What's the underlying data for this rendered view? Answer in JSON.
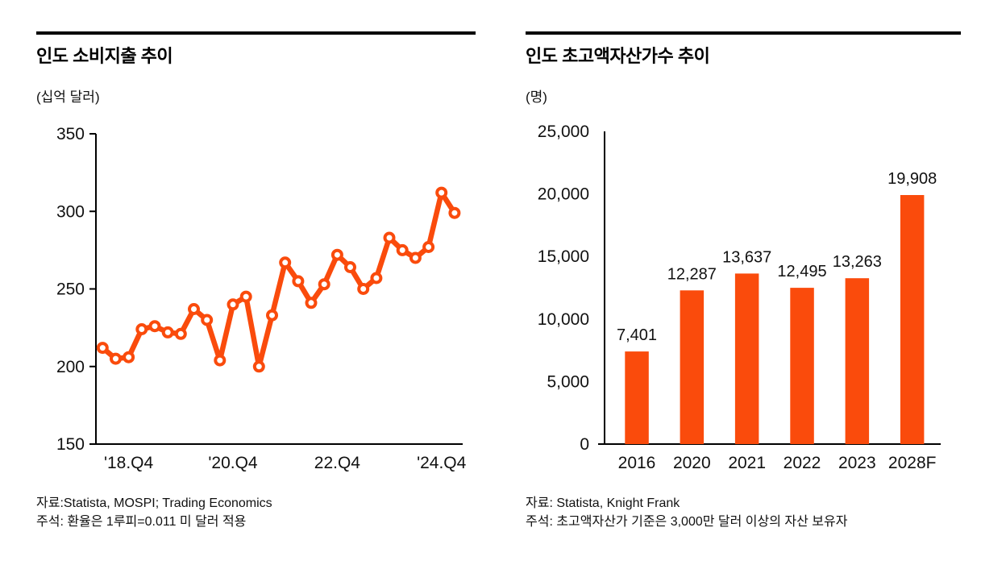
{
  "page": {
    "background": "#ffffff",
    "accent_color": "#FA4B0C",
    "rule_color": "#000000"
  },
  "left_panel": {
    "title": "인도 소비지출 추이",
    "unit": "(십억 달러)",
    "source": "자료:Statista, MOSPI; Trading Economics",
    "note": "주석: 환율은 1루피=0.011 미 달러 적용"
  },
  "right_panel": {
    "title": "인도 초고액자산가수 추이",
    "unit": "(명)",
    "source": "자료: Statista, Knight Frank",
    "note": "주석: 초고액자산가 기준은 3,000만 달러 이상의 자산 보유자"
  },
  "chart_data": [
    {
      "type": "line",
      "title": "인도 소비지출 추이",
      "ylabel": "(십억 달러)",
      "x": [
        "2018Q2",
        "2018Q3",
        "2018Q4",
        "2019Q1",
        "2019Q2",
        "2019Q3",
        "2019Q4",
        "2020Q1",
        "2020Q2",
        "2020Q3",
        "2020Q4",
        "2021Q1",
        "2021Q2",
        "2021Q3",
        "2021Q4",
        "2022Q1",
        "2022Q2",
        "2022Q3",
        "2022Q4",
        "2023Q1",
        "2023Q2",
        "2023Q3",
        "2023Q4",
        "2024Q1",
        "2024Q2",
        "2024Q3",
        "2024Q4",
        "2025Q1"
      ],
      "values": [
        212,
        205,
        206,
        224,
        226,
        222,
        221,
        237,
        230,
        204,
        240,
        245,
        200,
        233,
        267,
        255,
        241,
        253,
        272,
        264,
        250,
        257,
        283,
        275,
        270,
        277,
        312,
        299
      ],
      "yticks": [
        150,
        200,
        250,
        300,
        350
      ],
      "ytick_labels": [
        "150",
        "200",
        "250",
        "300",
        "350"
      ],
      "ylim": [
        150,
        350
      ],
      "xtick_positions": [
        2,
        10,
        18,
        26
      ],
      "xtick_labels": [
        "'18.Q4",
        "'20.Q4",
        "22.Q4",
        "'24.Q4"
      ],
      "line_color": "#FA4B0C",
      "marker": "open-circle",
      "grid": false,
      "legend": "none"
    },
    {
      "type": "bar",
      "title": "인도 초고액자산가수 추이",
      "ylabel": "(명)",
      "categories": [
        "2016",
        "2020",
        "2021",
        "2022",
        "2023",
        "2028F"
      ],
      "values": [
        7401,
        12287,
        13637,
        12495,
        13263,
        19908
      ],
      "value_labels": [
        "7,401",
        "12,287",
        "13,637",
        "12,495",
        "13,263",
        "19,908"
      ],
      "yticks": [
        0,
        5000,
        10000,
        15000,
        20000,
        25000
      ],
      "ytick_labels": [
        "0",
        "5,000",
        "10,000",
        "15,000",
        "20,000",
        "25,000"
      ],
      "ylim": [
        0,
        25000
      ],
      "bar_color": "#FA4B0C",
      "grid": false,
      "legend": "none"
    }
  ]
}
